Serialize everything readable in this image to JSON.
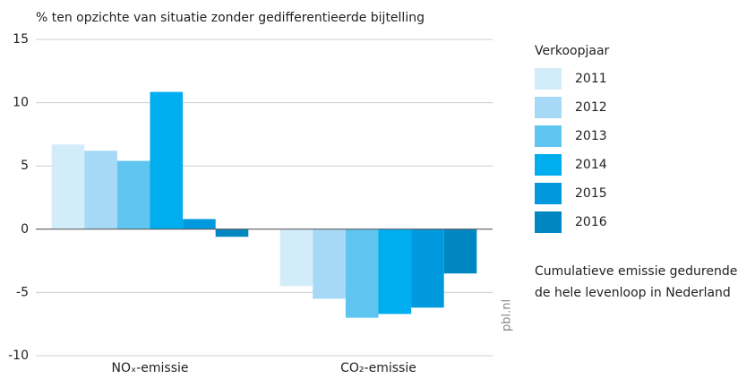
{
  "chart_data": {
    "type": "bar",
    "title": "% ten opzichte van situatie zonder gedifferentieerde bijtelling",
    "categories": [
      "NOₓ-emissie",
      "CO₂-emissie"
    ],
    "series": [
      {
        "name": "2011",
        "color": "#d3ecfa",
        "values": [
          6.7,
          -4.5
        ]
      },
      {
        "name": "2012",
        "color": "#a5d9f5",
        "values": [
          6.2,
          -5.5
        ]
      },
      {
        "name": "2013",
        "color": "#5fc4ef",
        "values": [
          5.4,
          -7.0
        ]
      },
      {
        "name": "2014",
        "color": "#00aeef",
        "values": [
          10.85,
          -6.7
        ]
      },
      {
        "name": "2015",
        "color": "#0099dd",
        "values": [
          0.8,
          -6.2
        ]
      },
      {
        "name": "2016",
        "color": "#0086c0",
        "values": [
          -0.6,
          -3.5
        ]
      }
    ],
    "legend_title": "Verkoopjaar",
    "note": [
      "Cumulatieve emissie gedurende",
      "de hele levenloop in Nederland"
    ],
    "source": "pbl.nl",
    "ylim": [
      -10,
      15
    ],
    "yticks": [
      -10,
      -5,
      0,
      5,
      10,
      15
    ],
    "grid": true
  }
}
